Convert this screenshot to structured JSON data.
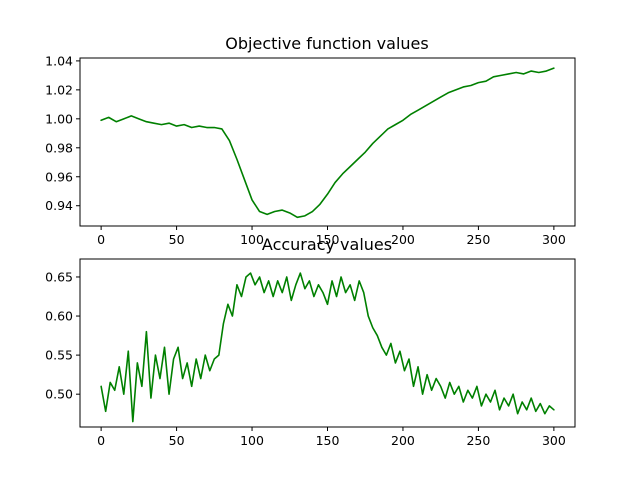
{
  "chart_data": [
    {
      "type": "line",
      "title": "Objective function values",
      "xlabel": "",
      "ylabel": "",
      "xlim": [
        -14,
        314
      ],
      "ylim": [
        0.926,
        1.042
      ],
      "x_ticks": [
        0,
        50,
        100,
        150,
        200,
        250,
        300
      ],
      "y_ticks": [
        0.94,
        0.96,
        0.98,
        1.0,
        1.02,
        1.04
      ],
      "y_tick_labels": [
        "0.94",
        "0.96",
        "0.98",
        "1.00",
        "1.02",
        "1.04"
      ],
      "grid": false,
      "series": [
        {
          "color": "#008000",
          "x": [
            0,
            5,
            10,
            15,
            20,
            25,
            30,
            35,
            40,
            45,
            50,
            55,
            60,
            65,
            70,
            75,
            80,
            85,
            90,
            95,
            100,
            105,
            110,
            115,
            120,
            125,
            130,
            135,
            140,
            145,
            150,
            155,
            160,
            165,
            170,
            175,
            180,
            185,
            190,
            195,
            200,
            205,
            210,
            215,
            220,
            225,
            230,
            235,
            240,
            245,
            250,
            255,
            260,
            265,
            270,
            275,
            280,
            285,
            290,
            295,
            300
          ],
          "values": [
            0.999,
            1.001,
            0.998,
            1.0,
            1.002,
            1.0,
            0.998,
            0.997,
            0.996,
            0.997,
            0.995,
            0.996,
            0.994,
            0.995,
            0.994,
            0.994,
            0.993,
            0.985,
            0.972,
            0.958,
            0.944,
            0.936,
            0.934,
            0.936,
            0.937,
            0.935,
            0.932,
            0.933,
            0.936,
            0.941,
            0.948,
            0.956,
            0.962,
            0.967,
            0.972,
            0.977,
            0.983,
            0.988,
            0.993,
            0.996,
            0.999,
            1.003,
            1.006,
            1.009,
            1.012,
            1.015,
            1.018,
            1.02,
            1.022,
            1.023,
            1.025,
            1.026,
            1.029,
            1.03,
            1.031,
            1.032,
            1.031,
            1.033,
            1.032,
            1.033,
            1.035
          ]
        }
      ]
    },
    {
      "type": "line",
      "title": "Accuracy values",
      "xlabel": "",
      "ylabel": "",
      "xlim": [
        -14,
        314
      ],
      "ylim": [
        0.458,
        0.673
      ],
      "x_ticks": [
        0,
        50,
        100,
        150,
        200,
        250,
        300
      ],
      "y_ticks": [
        0.5,
        0.55,
        0.6,
        0.65
      ],
      "y_tick_labels": [
        "0.50",
        "0.55",
        "0.60",
        "0.65"
      ],
      "grid": false,
      "series": [
        {
          "color": "#008000",
          "x": [
            0,
            3,
            6,
            9,
            12,
            15,
            18,
            21,
            24,
            27,
            30,
            33,
            36,
            39,
            42,
            45,
            48,
            51,
            54,
            57,
            60,
            63,
            66,
            69,
            72,
            75,
            78,
            81,
            84,
            87,
            90,
            93,
            96,
            99,
            102,
            105,
            108,
            111,
            114,
            117,
            120,
            123,
            126,
            129,
            132,
            135,
            138,
            141,
            144,
            147,
            150,
            153,
            156,
            159,
            162,
            165,
            168,
            171,
            174,
            177,
            180,
            183,
            186,
            189,
            192,
            195,
            198,
            201,
            204,
            207,
            210,
            213,
            216,
            219,
            222,
            225,
            228,
            231,
            234,
            237,
            240,
            243,
            246,
            249,
            252,
            255,
            258,
            261,
            264,
            267,
            270,
            273,
            276,
            279,
            282,
            285,
            288,
            291,
            294,
            297,
            300
          ],
          "values": [
            0.51,
            0.478,
            0.515,
            0.505,
            0.535,
            0.5,
            0.555,
            0.465,
            0.54,
            0.51,
            0.58,
            0.495,
            0.55,
            0.52,
            0.56,
            0.5,
            0.545,
            0.56,
            0.52,
            0.54,
            0.51,
            0.545,
            0.52,
            0.55,
            0.53,
            0.545,
            0.55,
            0.59,
            0.615,
            0.6,
            0.64,
            0.625,
            0.65,
            0.655,
            0.64,
            0.65,
            0.63,
            0.645,
            0.625,
            0.645,
            0.63,
            0.65,
            0.62,
            0.64,
            0.655,
            0.635,
            0.645,
            0.625,
            0.64,
            0.63,
            0.615,
            0.645,
            0.625,
            0.65,
            0.63,
            0.64,
            0.62,
            0.645,
            0.63,
            0.6,
            0.585,
            0.575,
            0.56,
            0.55,
            0.565,
            0.54,
            0.555,
            0.53,
            0.545,
            0.51,
            0.535,
            0.5,
            0.525,
            0.505,
            0.52,
            0.51,
            0.495,
            0.515,
            0.5,
            0.51,
            0.49,
            0.505,
            0.495,
            0.51,
            0.485,
            0.5,
            0.49,
            0.505,
            0.48,
            0.495,
            0.485,
            0.5,
            0.475,
            0.49,
            0.48,
            0.495,
            0.478,
            0.488,
            0.475,
            0.485,
            0.48
          ]
        }
      ]
    }
  ]
}
